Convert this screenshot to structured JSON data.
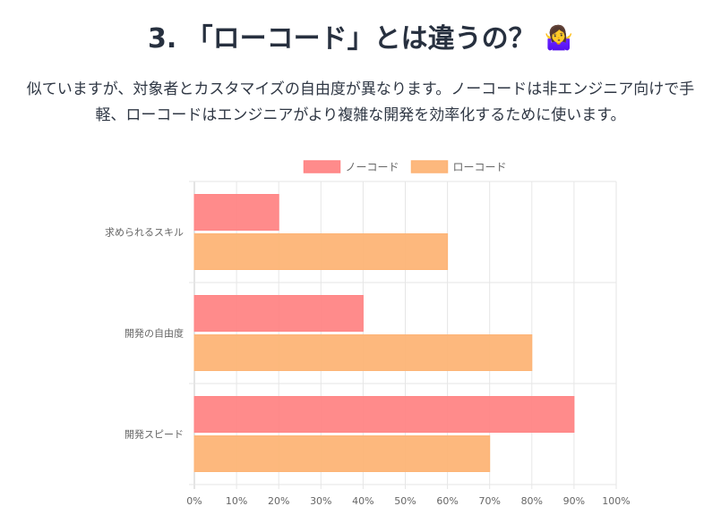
{
  "header": {
    "title": "3. 「ローコード」とは違うの？",
    "title_emoji": "🤷‍♀️",
    "description": "似ていますが、対象者とカスタマイズの自由度が異なります。ノーコードは非エンジニア向けで手軽、ローコードはエンジニアがより複雑な開発を効率化するために使います。"
  },
  "chart_data": {
    "type": "bar",
    "orientation": "horizontal",
    "categories": [
      "求められるスキル",
      "開発の自由度",
      "開発スピード"
    ],
    "series": [
      {
        "name": "ノーコード",
        "values": [
          20,
          40,
          90
        ],
        "color": "#ff8585"
      },
      {
        "name": "ローコード",
        "values": [
          60,
          80,
          70
        ],
        "color": "#fdb476"
      }
    ],
    "xlim": [
      0,
      100
    ],
    "x_ticks": [
      "0%",
      "10%",
      "20%",
      "30%",
      "40%",
      "50%",
      "60%",
      "70%",
      "80%",
      "90%",
      "100%"
    ],
    "grid": true,
    "legend_position": "top-center"
  }
}
